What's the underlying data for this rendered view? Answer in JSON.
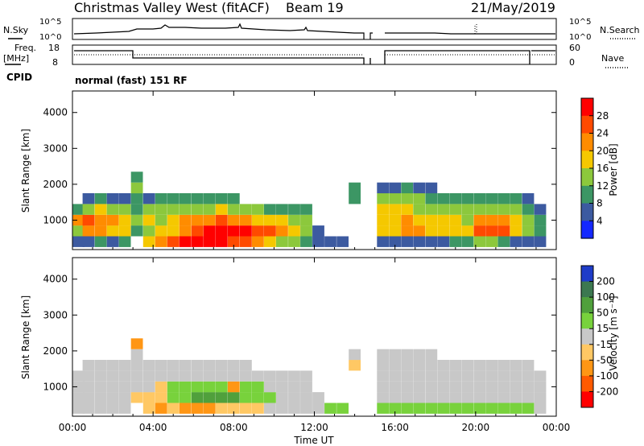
{
  "header": {
    "site": "Christmas Valley West (fitACF)",
    "beam": "Beam 19",
    "date": "21/May/2019"
  },
  "noise_panel": {
    "left_label": "N.Sky",
    "right_label": "N.Search",
    "left_ticks": [
      "10^5",
      "10^0"
    ],
    "right_ticks": [
      "10^5",
      "10^0"
    ]
  },
  "freq_panel": {
    "left_label_1": "Freq.",
    "left_label_2": "[MHz]",
    "right_label": "Nave",
    "left_ticks": [
      "18",
      "8"
    ],
    "right_ticks": [
      "60",
      "0"
    ]
  },
  "cpid": {
    "label": "CPID",
    "value": "normal (fast) 151 RF"
  },
  "x_axis": {
    "ticks": [
      "00:00",
      "04:00",
      "08:00",
      "12:00",
      "16:00",
      "20:00",
      "00:00"
    ],
    "label": "Time UT"
  },
  "power_colorbar": {
    "label": "Power [dB]",
    "ticks": [
      "28",
      "24",
      "20",
      "16",
      "12",
      "8",
      "4"
    ],
    "colors": [
      "#ff0000",
      "#ff4a00",
      "#ff8c00",
      "#f5c800",
      "#8cc83c",
      "#3c9664",
      "#3c5aa0",
      "#1428ff"
    ]
  },
  "velocity_colorbar": {
    "label": "Velocity [m s⁻¹]",
    "ticks": [
      "200",
      "100",
      "50",
      "15",
      "-15",
      "-50",
      "-100",
      "-200"
    ],
    "colors": [
      "#1e3cc8",
      "#3c7850",
      "#50a03c",
      "#78d23c",
      "#c8c8c8",
      "#ffc864",
      "#ff9614",
      "#ff5a00",
      "#ff0000"
    ]
  },
  "chart_data": [
    {
      "type": "heatmap",
      "title": "",
      "xlabel": "Time UT",
      "ylabel": "Slant Range [km]",
      "xlim": [
        0,
        24
      ],
      "ylim": [
        180,
        4600
      ],
      "y_ticks": [
        "1000",
        "2000",
        "3000",
        "4000"
      ],
      "colorbar_label": "Power [dB]",
      "colorbar_range": [
        0,
        32
      ],
      "x_hours": [
        0.3,
        0.8,
        1.4,
        2.0,
        2.6,
        3.2,
        3.8,
        4.4,
        5.0,
        5.6,
        6.2,
        6.8,
        7.4,
        8.0,
        8.6,
        9.2,
        9.8,
        10.4,
        11.0,
        11.6,
        12.2,
        12.8,
        13.4,
        14.0,
        14.6,
        15.4,
        16.0,
        16.6,
        17.2,
        17.8,
        18.4,
        19.0,
        19.6,
        20.2,
        20.8,
        21.4,
        22.0,
        22.6,
        23.2
      ],
      "ranges_km": [
        400,
        700,
        1000,
        1300,
        1600,
        1900,
        2200
      ],
      "power_db": [
        [
          4,
          14,
          22,
          10,
          null,
          null,
          null
        ],
        [
          6,
          20,
          24,
          14,
          6,
          null,
          null
        ],
        [
          8,
          22,
          22,
          16,
          8,
          null,
          null
        ],
        [
          6,
          18,
          20,
          14,
          6,
          null,
          null
        ],
        [
          10,
          16,
          18,
          12,
          4,
          null,
          null
        ],
        [
          null,
          8,
          12,
          10,
          8,
          14,
          10
        ],
        [
          18,
          14,
          16,
          12,
          6,
          null,
          null
        ],
        [
          20,
          16,
          14,
          12,
          10,
          null,
          null
        ],
        [
          24,
          18,
          16,
          12,
          8,
          null,
          null
        ],
        [
          28,
          22,
          20,
          14,
          10,
          null,
          null
        ],
        [
          30,
          26,
          20,
          14,
          8,
          null,
          null
        ],
        [
          28,
          28,
          22,
          14,
          8,
          null,
          null
        ],
        [
          28,
          30,
          24,
          16,
          10,
          null,
          null
        ],
        [
          26,
          30,
          22,
          14,
          8,
          null,
          null
        ],
        [
          24,
          28,
          20,
          12,
          null,
          null,
          null
        ],
        [
          20,
          26,
          18,
          12,
          null,
          null,
          null
        ],
        [
          16,
          24,
          18,
          10,
          null,
          null,
          null
        ],
        [
          14,
          20,
          16,
          10,
          null,
          null,
          null
        ],
        [
          12,
          18,
          14,
          8,
          null,
          null,
          null
        ],
        [
          10,
          14,
          12,
          8,
          null,
          null,
          null
        ],
        [
          4,
          6,
          null,
          null,
          null,
          null,
          null
        ],
        [
          4,
          null,
          null,
          null,
          null,
          null,
          null
        ],
        [
          6,
          null,
          null,
          null,
          null,
          null,
          null
        ],
        [
          null,
          null,
          null,
          null,
          8,
          10,
          null
        ],
        [
          null,
          null,
          null,
          null,
          null,
          null,
          null
        ],
        [
          4,
          16,
          18,
          16,
          12,
          4,
          null
        ],
        [
          6,
          18,
          18,
          16,
          12,
          6,
          null
        ],
        [
          4,
          20,
          20,
          16,
          12,
          8,
          null
        ],
        [
          6,
          20,
          18,
          14,
          12,
          6,
          null
        ],
        [
          4,
          18,
          18,
          14,
          10,
          4,
          null
        ],
        [
          4,
          16,
          16,
          14,
          10,
          null,
          null
        ],
        [
          8,
          16,
          16,
          12,
          8,
          null,
          null
        ],
        [
          10,
          18,
          14,
          12,
          8,
          null,
          null
        ],
        [
          12,
          24,
          20,
          14,
          10,
          null,
          null
        ],
        [
          14,
          26,
          22,
          14,
          10,
          null,
          null
        ],
        [
          10,
          24,
          20,
          14,
          10,
          null,
          null
        ],
        [
          6,
          18,
          16,
          12,
          8,
          null,
          null
        ],
        [
          4,
          14,
          14,
          10,
          6,
          null,
          null
        ],
        [
          4,
          8,
          8,
          6,
          null,
          null,
          null
        ]
      ]
    },
    {
      "type": "heatmap",
      "title": "",
      "xlabel": "Time UT",
      "ylabel": "Slant Range [km]",
      "xlim": [
        0,
        24
      ],
      "ylim": [
        180,
        4600
      ],
      "y_ticks": [
        "1000",
        "2000",
        "3000",
        "4000"
      ],
      "colorbar_label": "Velocity [m s⁻¹]",
      "colorbar_range": [
        -250,
        250
      ],
      "x_hours": [
        0.3,
        0.8,
        1.4,
        2.0,
        2.6,
        3.2,
        3.8,
        4.4,
        5.0,
        5.6,
        6.2,
        6.8,
        7.4,
        8.0,
        8.6,
        9.2,
        9.8,
        10.4,
        11.0,
        11.6,
        12.2,
        12.8,
        13.4,
        14.0,
        14.6,
        15.4,
        16.0,
        16.6,
        17.2,
        17.8,
        18.4,
        19.0,
        19.6,
        20.2,
        20.8,
        21.4,
        22.0,
        22.6,
        23.2
      ],
      "ranges_km": [
        400,
        700,
        1000,
        1300,
        1600,
        1900,
        2200
      ],
      "velocity_ms": [
        [
          -5,
          0,
          5,
          0,
          null,
          null,
          null
        ],
        [
          -8,
          -5,
          0,
          5,
          0,
          null,
          null
        ],
        [
          -10,
          0,
          5,
          0,
          -5,
          null,
          null
        ],
        [
          -5,
          0,
          0,
          5,
          0,
          null,
          null
        ],
        [
          -5,
          -10,
          0,
          5,
          0,
          null,
          null
        ],
        [
          null,
          -40,
          0,
          5,
          0,
          10,
          -60
        ],
        [
          -40,
          -30,
          0,
          0,
          5,
          null,
          null
        ],
        [
          -60,
          -40,
          -20,
          0,
          5,
          null,
          null
        ],
        [
          -50,
          30,
          20,
          0,
          0,
          null,
          null
        ],
        [
          -60,
          40,
          30,
          10,
          0,
          null,
          null
        ],
        [
          -70,
          60,
          40,
          10,
          0,
          null,
          null
        ],
        [
          -60,
          50,
          30,
          5,
          0,
          null,
          null
        ],
        [
          -40,
          60,
          40,
          10,
          0,
          null,
          null
        ],
        [
          -30,
          50,
          -60,
          5,
          0,
          null,
          null
        ],
        [
          -30,
          40,
          30,
          0,
          0,
          null,
          null
        ],
        [
          -20,
          30,
          20,
          0,
          null,
          null,
          null
        ],
        [
          -10,
          20,
          10,
          0,
          null,
          null,
          null
        ],
        [
          0,
          10,
          5,
          0,
          null,
          null,
          null
        ],
        [
          0,
          5,
          0,
          0,
          null,
          null,
          null
        ],
        [
          -5,
          0,
          0,
          0,
          null,
          null,
          null
        ],
        [
          10,
          0,
          null,
          null,
          null,
          null,
          null
        ],
        [
          20,
          null,
          null,
          null,
          null,
          null,
          null
        ],
        [
          30,
          null,
          null,
          null,
          null,
          null,
          null
        ],
        [
          null,
          null,
          null,
          null,
          -20,
          0,
          null
        ],
        [
          null,
          null,
          null,
          null,
          null,
          null,
          null
        ],
        [
          30,
          0,
          0,
          0,
          0,
          0,
          null
        ],
        [
          35,
          0,
          5,
          0,
          -5,
          0,
          null
        ],
        [
          40,
          -5,
          0,
          5,
          0,
          0,
          null
        ],
        [
          35,
          0,
          0,
          0,
          5,
          0,
          null
        ],
        [
          30,
          0,
          0,
          5,
          0,
          0,
          null
        ],
        [
          30,
          0,
          5,
          0,
          0,
          null,
          null
        ],
        [
          25,
          0,
          0,
          0,
          0,
          null,
          null
        ],
        [
          25,
          -5,
          0,
          0,
          0,
          null,
          null
        ],
        [
          30,
          0,
          0,
          5,
          0,
          null,
          null
        ],
        [
          35,
          0,
          5,
          0,
          0,
          null,
          null
        ],
        [
          30,
          0,
          0,
          0,
          0,
          null,
          null
        ],
        [
          25,
          0,
          0,
          0,
          0,
          null,
          null
        ],
        [
          20,
          0,
          0,
          0,
          0,
          null,
          null
        ],
        [
          10,
          0,
          0,
          0,
          null,
          null,
          null
        ]
      ]
    }
  ]
}
